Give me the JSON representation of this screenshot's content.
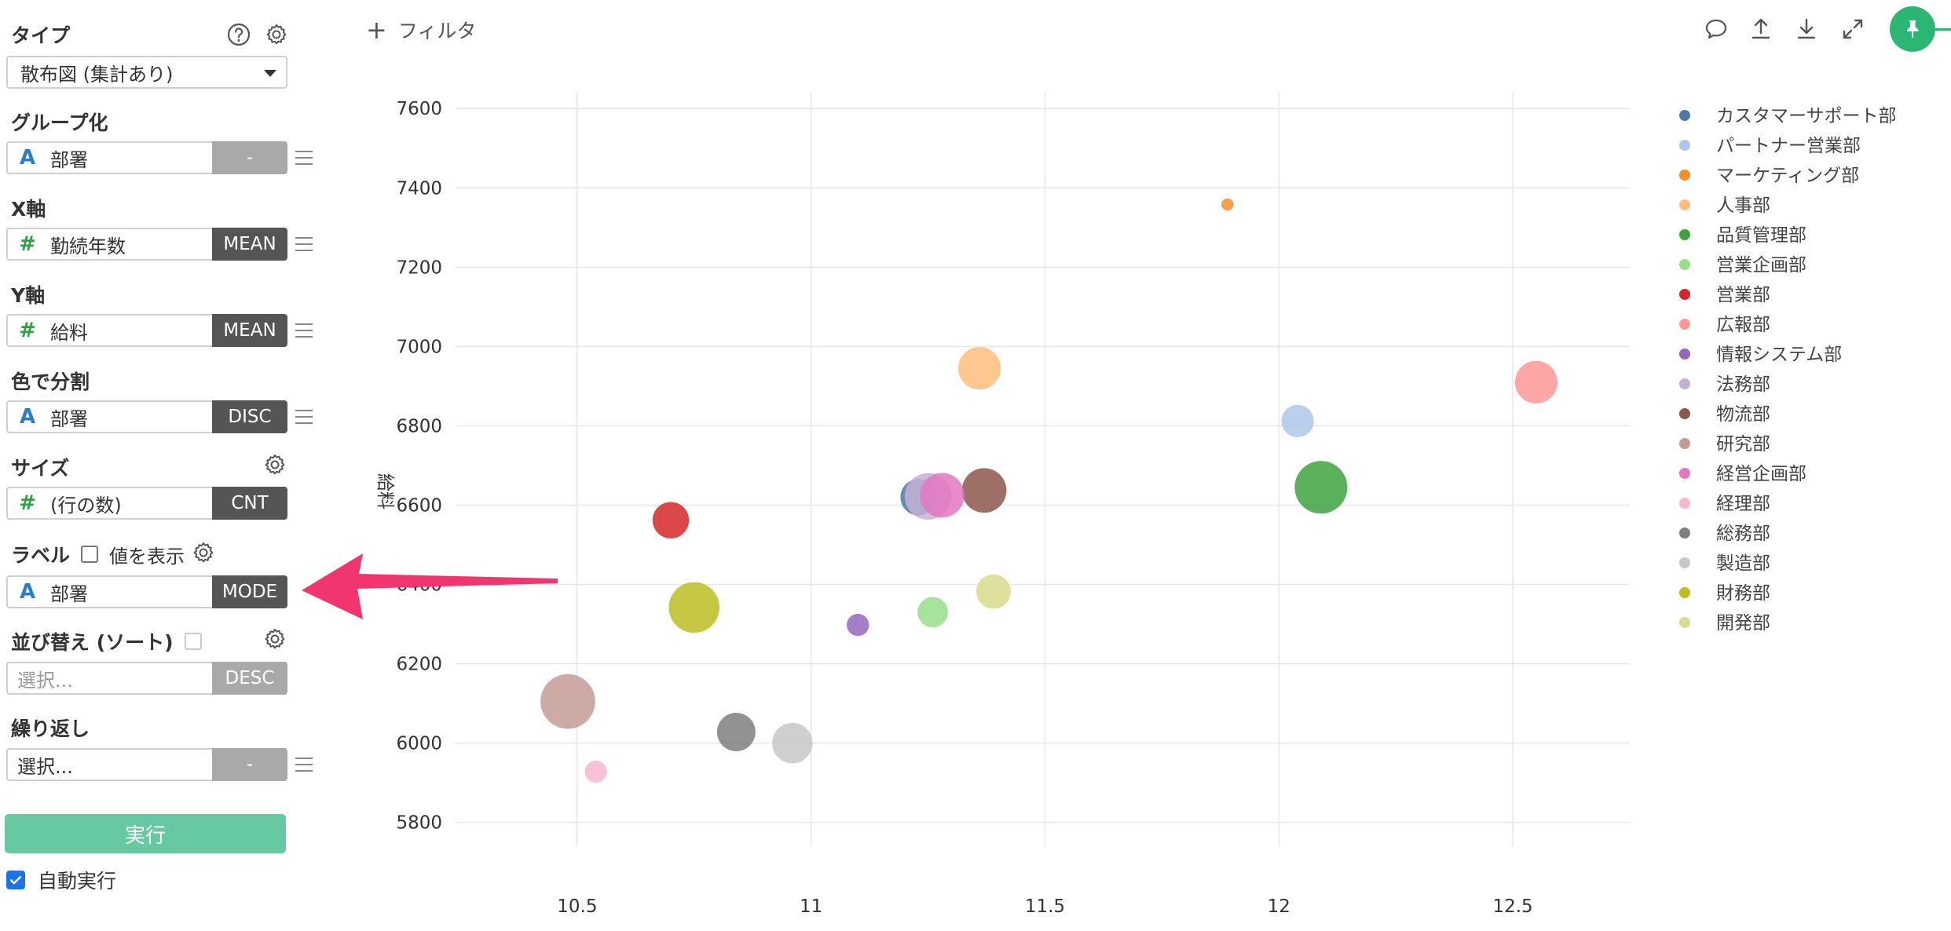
{
  "sidebar": {
    "type": {
      "title": "タイプ",
      "value": "散布図 (集計あり)"
    },
    "group": {
      "title": "グループ化",
      "field": "部署",
      "field_type": "string",
      "agg": "-"
    },
    "x_axis": {
      "title": "X軸",
      "field": "勤続年数",
      "field_type": "number",
      "agg": "MEAN"
    },
    "y_axis": {
      "title": "Y軸",
      "field": "給料",
      "field_type": "number",
      "agg": "MEAN"
    },
    "color": {
      "title": "色で分割",
      "field": "部署",
      "field_type": "string",
      "agg": "DISC"
    },
    "size": {
      "title": "サイズ",
      "field": "(行の数)",
      "field_type": "number",
      "agg": "CNT"
    },
    "label": {
      "title": "ラベル",
      "show_values_label": "値を表示",
      "show_values_checked": false,
      "field": "部署",
      "field_type": "string",
      "agg": "MODE"
    },
    "sort": {
      "title": "並び替え (ソート)",
      "placeholder": "選択...",
      "agg": "DESC"
    },
    "repeat": {
      "title": "繰り返し",
      "placeholder": "選択...",
      "agg": "-"
    },
    "run_label": "実行",
    "auto_run_label": "自動実行",
    "auto_run_checked": true
  },
  "toolbar": {
    "filter_label": "フィルタ",
    "icons": [
      "comment-icon",
      "upload-icon",
      "download-icon",
      "expand-icon",
      "pin-icon"
    ]
  },
  "colors": {
    "accent": "#2bb673",
    "run_button": "#67c9a2",
    "annotation_arrow": "#f0356f",
    "string_type_icon": "#2a7cc7",
    "number_type_icon": "#29a444"
  },
  "chart_data": {
    "type": "scatter",
    "title": "",
    "xlabel": "",
    "ylabel": "給料",
    "xlim": [
      10.24,
      12.75
    ],
    "ylim": [
      5740,
      7640
    ],
    "xticks": [
      10.5,
      11,
      11.5,
      12,
      12.5
    ],
    "xtick_labels": [
      "10.5",
      "11",
      "11.5",
      "12",
      "12.5"
    ],
    "yticks": [
      5800,
      6000,
      6200,
      6400,
      6600,
      6800,
      7000,
      7200,
      7400,
      7600
    ],
    "grid": true,
    "legend_position": "right",
    "series": [
      {
        "name": "カスタマーサポート部",
        "color": "#4e79a7",
        "x": 11.23,
        "y": 6620,
        "size": 36
      },
      {
        "name": "パートナー営業部",
        "color": "#aec7e8",
        "x": 12.04,
        "y": 6812,
        "size": 32
      },
      {
        "name": "マーケティング部",
        "color": "#f28e2b",
        "x": 11.89,
        "y": 7358,
        "size": 12
      },
      {
        "name": "人事部",
        "color": "#ffbe7d",
        "x": 11.36,
        "y": 6945,
        "size": 42
      },
      {
        "name": "品質管理部",
        "color": "#3ea33e",
        "x": 12.09,
        "y": 6645,
        "size": 52
      },
      {
        "name": "営業企画部",
        "color": "#98df8a",
        "x": 11.26,
        "y": 6330,
        "size": 30
      },
      {
        "name": "営業部",
        "color": "#d62728",
        "x": 10.7,
        "y": 6562,
        "size": 36
      },
      {
        "name": "広報部",
        "color": "#ff9896",
        "x": 12.55,
        "y": 6910,
        "size": 42
      },
      {
        "name": "情報システム部",
        "color": "#9467bd",
        "x": 11.1,
        "y": 6298,
        "size": 22
      },
      {
        "name": "法務部",
        "color": "#c5b0d5",
        "x": 11.25,
        "y": 6622,
        "size": 46
      },
      {
        "name": "物流部",
        "color": "#8c564b",
        "x": 11.37,
        "y": 6637,
        "size": 44
      },
      {
        "name": "研究部",
        "color": "#c49c94",
        "x": 10.48,
        "y": 6105,
        "size": 54
      },
      {
        "name": "経営企画部",
        "color": "#e377c2",
        "x": 11.28,
        "y": 6625,
        "size": 44
      },
      {
        "name": "経理部",
        "color": "#f7b6d2",
        "x": 10.54,
        "y": 5928,
        "size": 22
      },
      {
        "name": "総務部",
        "color": "#7f7f7f",
        "x": 10.84,
        "y": 6028,
        "size": 38
      },
      {
        "name": "製造部",
        "color": "#c7c7c7",
        "x": 10.96,
        "y": 6000,
        "size": 40
      },
      {
        "name": "財務部",
        "color": "#bcbd22",
        "x": 10.75,
        "y": 6342,
        "size": 50
      },
      {
        "name": "開発部",
        "color": "#dbdb8d",
        "x": 11.39,
        "y": 6382,
        "size": 34
      }
    ]
  }
}
